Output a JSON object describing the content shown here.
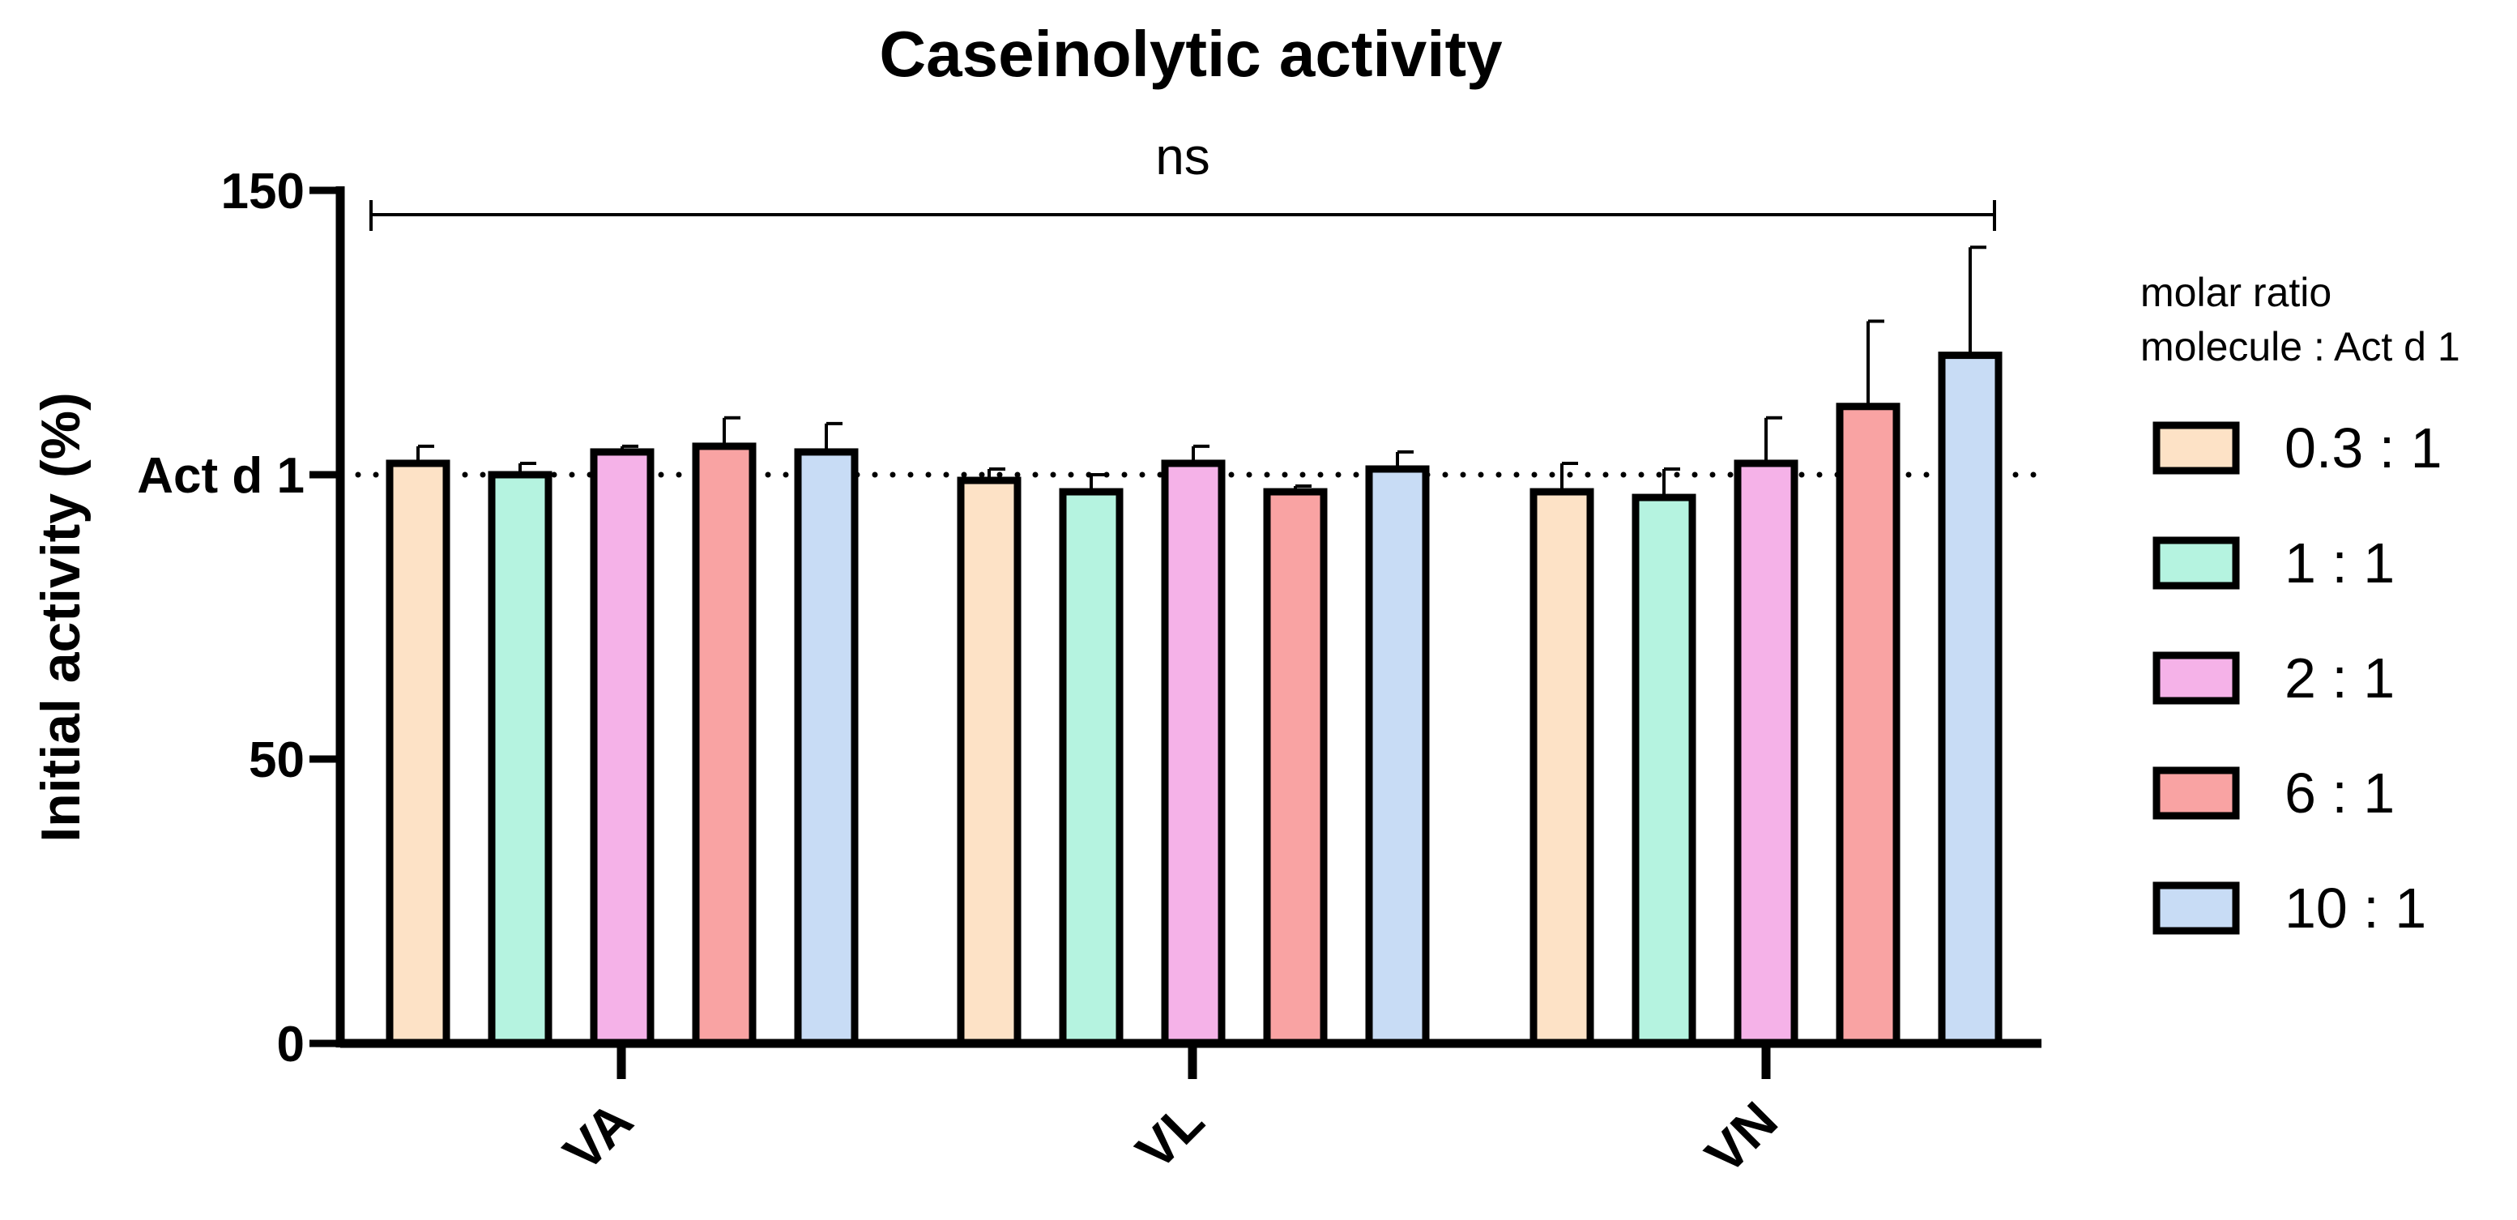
{
  "chart_data": {
    "type": "bar",
    "title": "Caseinolytic activity",
    "xlabel": "",
    "ylabel": "Initial activity (%)",
    "ylim": [
      0,
      150
    ],
    "yticks": [
      {
        "value": 0,
        "label": "0"
      },
      {
        "value": 50,
        "label": "50"
      },
      {
        "value": 100,
        "label": "Act d 1"
      },
      {
        "value": 150,
        "label": "150"
      }
    ],
    "reference_line": {
      "value": 100,
      "style": "dotted"
    },
    "categories": [
      "VA",
      "VL",
      "VN"
    ],
    "legend_title": [
      "molar ratio",
      "molecule : Act d 1"
    ],
    "significance": {
      "label": "ns",
      "from": "VA",
      "to": "VN",
      "y": 145
    },
    "series": [
      {
        "name": "0.3 : 1",
        "color": "#FDE2C6",
        "values": [
          102,
          99,
          97
        ],
        "errors": [
          3,
          2,
          5
        ]
      },
      {
        "name": "1 : 1",
        "color": "#B5F3E0",
        "values": [
          100,
          97,
          96
        ],
        "errors": [
          2,
          3,
          5
        ]
      },
      {
        "name": "2 : 1",
        "color": "#F5B2E8",
        "values": [
          104,
          102,
          102
        ],
        "errors": [
          1,
          3,
          8
        ]
      },
      {
        "name": "6 : 1",
        "color": "#F9A3A3",
        "values": [
          105,
          97,
          112
        ],
        "errors": [
          5,
          1,
          15
        ]
      },
      {
        "name": "10 : 1",
        "color": "#C8DCF5",
        "values": [
          104,
          101,
          121
        ],
        "errors": [
          5,
          3,
          19
        ]
      }
    ]
  }
}
